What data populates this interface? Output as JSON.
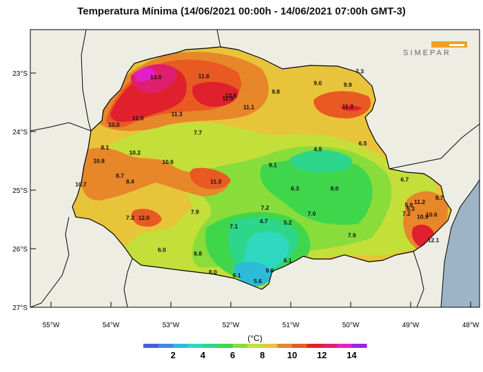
{
  "title": "Temperatura Mínima (14/06/2021 00:00h - 14/06/2021 07:00h GMT-3)",
  "logo_text": "SIMEPAR",
  "map": {
    "lat_ticks": [
      {
        "label": "23°S",
        "lat": -23
      },
      {
        "label": "24°S",
        "lat": -24
      },
      {
        "label": "25°S",
        "lat": -25
      },
      {
        "label": "26°S",
        "lat": -26
      },
      {
        "label": "27°S",
        "lat": -27
      }
    ],
    "lon_ticks": [
      {
        "label": "55°W",
        "lon": -55
      },
      {
        "label": "54°W",
        "lon": -54
      },
      {
        "label": "53°W",
        "lon": -53
      },
      {
        "label": "52°W",
        "lon": -52
      },
      {
        "label": "51°W",
        "lon": -51
      },
      {
        "label": "50°W",
        "lon": -50
      },
      {
        "label": "49°W",
        "lon": -49
      },
      {
        "label": "48°W",
        "lon": -48
      }
    ],
    "stations": [
      {
        "v": "13.0",
        "lon": -53.25,
        "lat": -23.07
      },
      {
        "v": "11.6",
        "lon": -52.45,
        "lat": -23.05
      },
      {
        "v": "7.3",
        "lon": -49.85,
        "lat": -22.97
      },
      {
        "v": "9.0",
        "lon": -50.55,
        "lat": -23.17
      },
      {
        "v": "9.9",
        "lon": -50.05,
        "lat": -23.2
      },
      {
        "v": "12.5",
        "lon": -52.0,
        "lat": -23.38
      },
      {
        "v": "11.9",
        "lon": -52.05,
        "lat": -23.43
      },
      {
        "v": "9.8",
        "lon": -51.25,
        "lat": -23.32
      },
      {
        "v": "11.1",
        "lon": -51.7,
        "lat": -23.58
      },
      {
        "v": "11.3",
        "lon": -50.05,
        "lat": -23.57
      },
      {
        "v": "11.3",
        "lon": -52.9,
        "lat": -23.7
      },
      {
        "v": "12.0",
        "lon": -53.55,
        "lat": -23.77
      },
      {
        "v": "13.0",
        "lon": -53.95,
        "lat": -23.88
      },
      {
        "v": "7.7",
        "lon": -52.55,
        "lat": -24.02
      },
      {
        "v": "6.5",
        "lon": -49.8,
        "lat": -24.2
      },
      {
        "v": "8.1",
        "lon": -54.1,
        "lat": -24.27
      },
      {
        "v": "10.2",
        "lon": -53.6,
        "lat": -24.36
      },
      {
        "v": "4.9",
        "lon": -50.55,
        "lat": -24.3
      },
      {
        "v": "10.8",
        "lon": -54.2,
        "lat": -24.5
      },
      {
        "v": "10.6",
        "lon": -53.05,
        "lat": -24.52
      },
      {
        "v": "9.1",
        "lon": -51.3,
        "lat": -24.57
      },
      {
        "v": "8.7",
        "lon": -53.85,
        "lat": -24.75
      },
      {
        "v": "8.4",
        "lon": -53.68,
        "lat": -24.85
      },
      {
        "v": "11.3",
        "lon": -52.25,
        "lat": -24.85
      },
      {
        "v": "10.7",
        "lon": -54.5,
        "lat": -24.9
      },
      {
        "v": "6.7",
        "lon": -49.1,
        "lat": -24.82
      },
      {
        "v": "6.3",
        "lon": -50.93,
        "lat": -24.97
      },
      {
        "v": "8.0",
        "lon": -50.27,
        "lat": -24.97
      },
      {
        "v": "11.2",
        "lon": -48.85,
        "lat": -25.2
      },
      {
        "v": "8.7",
        "lon": -48.52,
        "lat": -25.13
      },
      {
        "v": "5.9",
        "lon": -49.03,
        "lat": -25.25
      },
      {
        "v": "5.3",
        "lon": -49.0,
        "lat": -25.32
      },
      {
        "v": "7.2",
        "lon": -51.43,
        "lat": -25.3
      },
      {
        "v": "7.9",
        "lon": -52.6,
        "lat": -25.37
      },
      {
        "v": "7.0",
        "lon": -50.65,
        "lat": -25.4
      },
      {
        "v": "7.2",
        "lon": -49.07,
        "lat": -25.4
      },
      {
        "v": "10.9",
        "lon": -48.8,
        "lat": -25.45
      },
      {
        "v": "10.6",
        "lon": -48.65,
        "lat": -25.42
      },
      {
        "v": "7.3",
        "lon": -53.68,
        "lat": -25.47
      },
      {
        "v": "12.0",
        "lon": -53.45,
        "lat": -25.47
      },
      {
        "v": "4.7",
        "lon": -51.45,
        "lat": -25.53
      },
      {
        "v": "5.2",
        "lon": -51.05,
        "lat": -25.55
      },
      {
        "v": "7.1",
        "lon": -51.95,
        "lat": -25.62
      },
      {
        "v": "7.9",
        "lon": -49.98,
        "lat": -25.77
      },
      {
        "v": "12.1",
        "lon": -48.62,
        "lat": -25.85
      },
      {
        "v": "6.0",
        "lon": -53.15,
        "lat": -26.02
      },
      {
        "v": "8.8",
        "lon": -52.55,
        "lat": -26.08
      },
      {
        "v": "6.1",
        "lon": -51.05,
        "lat": -26.2
      },
      {
        "v": "0.6",
        "lon": -51.35,
        "lat": -26.37
      },
      {
        "v": "8.0",
        "lon": -52.3,
        "lat": -26.4
      },
      {
        "v": "6.1",
        "lon": -51.9,
        "lat": -26.45
      },
      {
        "v": "5.6",
        "lon": -51.55,
        "lat": -26.55
      }
    ]
  },
  "colorbar": {
    "label": "(°C)",
    "colors": [
      "#4b5be0",
      "#3f86e8",
      "#2cbcd8",
      "#2ed9c0",
      "#2ed68c",
      "#3fd64c",
      "#88dd3a",
      "#c4df3a",
      "#e8c43a",
      "#e8862a",
      "#e85a22",
      "#e0202c",
      "#e01e6e",
      "#e020c8",
      "#a020e8"
    ],
    "ticks": [
      "2",
      "4",
      "6",
      "8",
      "10",
      "12",
      "14"
    ]
  },
  "colors": {
    "ocean": "#9db3c6",
    "land_outside": "#eeede3",
    "border": "#000000"
  }
}
